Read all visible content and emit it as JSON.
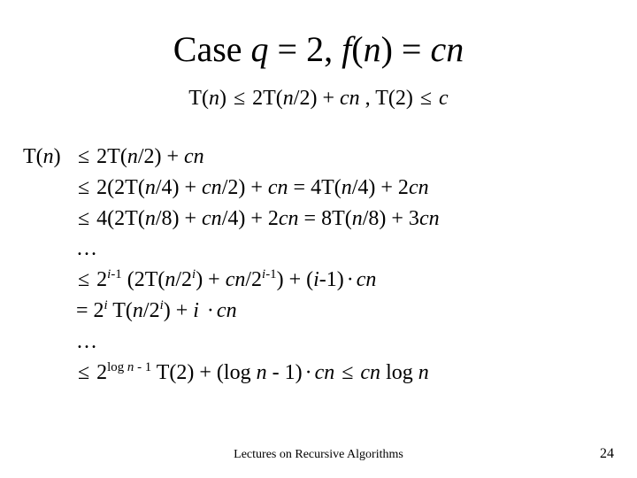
{
  "title": {
    "t1": "Case ",
    "t2": "q",
    "t3": " = 2, ",
    "t4": "f",
    "t5": "(",
    "t6": "n",
    "t7": ") = ",
    "t8": "cn"
  },
  "subeq": {
    "a1": "T(",
    "a2": "n",
    "a3": ") ",
    "le": "≤",
    "a4": " 2T(",
    "a5": "n",
    "a6": "/2) + ",
    "a7": "cn",
    "a8": "  ,  T(2) ",
    "a9": " ",
    "a10": "c"
  },
  "body": {
    "lhs1": "T(",
    "lhs2": "n",
    "lhs3": ")",
    "l1a": "  2T(",
    "l1b": "n",
    "l1c": "/2) + ",
    "l1d": "cn",
    "l2a": "  2(2T(",
    "l2b": "n",
    "l2c": "/4) + ",
    "l2d": "cn",
    "l2e": "/2) + ",
    "l2f": "cn",
    "l2g": "   = 4T(",
    "l2h": "n",
    "l2i": "/4) + 2",
    "l2j": "cn",
    "l3a": "  4(2T(",
    "l3b": "n",
    "l3c": "/8) + ",
    "l3d": "cn",
    "l3e": "/4) + 2",
    "l3f": "cn",
    "l3g": " = 8T(",
    "l3h": "n",
    "l3i": "/8) + 3",
    "l3j": "cn",
    "dots": "…",
    "l5a": "  2",
    "l5sup1a": "i",
    "l5sup1b": "-1",
    "l5b": " (2T(",
    "l5c": "n",
    "l5d": "/2",
    "l5sup2": "i",
    "l5e": ") + ",
    "l5f": "cn",
    "l5g": "/2",
    "l5sup3a": "i",
    "l5sup3b": "-1",
    "l5h": ") + (",
    "l5i": "i",
    "l5j": "-1)",
    "middot": "·",
    "l5k": "cn",
    "l6a": "= 2",
    "l6sup1": "i",
    "l6b": " T(",
    "l6c": "n",
    "l6d": "/2",
    "l6sup2": "i",
    "l6e": ") + ",
    "l6f": "i ",
    "l6g": "cn",
    "l8a": " 2",
    "l8supA": "log ",
    "l8supB": "n ",
    "l8supC": "- 1",
    "l8b": "  T(2) + (log ",
    "l8c": "n",
    "l8d": " - 1)",
    "l8e": "cn",
    "l8f": "  ",
    "l8g": "  ",
    "l8h": "cn",
    "l8i": " log ",
    "l8j": "n"
  },
  "footer": "Lectures on Recursive Algorithms",
  "pagenum": "24",
  "glyphs": {
    "le": "≤",
    "dot": "·"
  }
}
